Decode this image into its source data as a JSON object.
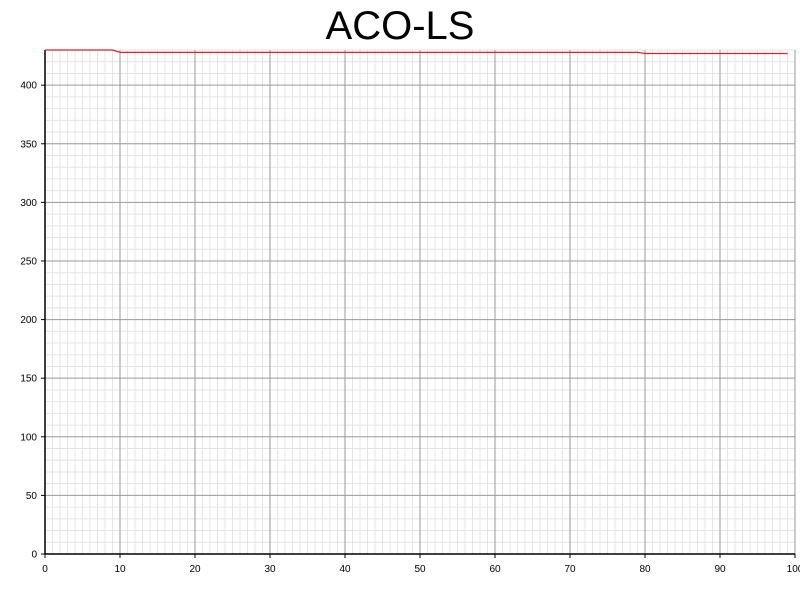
{
  "chart_data": {
    "type": "line",
    "title": "ACO-LS",
    "xlabel": "",
    "ylabel": "",
    "xlim": [
      0,
      100
    ],
    "ylim": [
      0,
      430
    ],
    "xticks": [
      0,
      10,
      20,
      30,
      40,
      50,
      60,
      70,
      80,
      90,
      100
    ],
    "yticks": [
      0,
      50,
      100,
      150,
      200,
      250,
      300,
      350,
      400
    ],
    "grid": true,
    "series": [
      {
        "color": "#dd2222",
        "x": [
          0,
          9,
          10,
          79,
          80,
          99
        ],
        "y": [
          430,
          430,
          428,
          428,
          427,
          427
        ]
      }
    ]
  }
}
